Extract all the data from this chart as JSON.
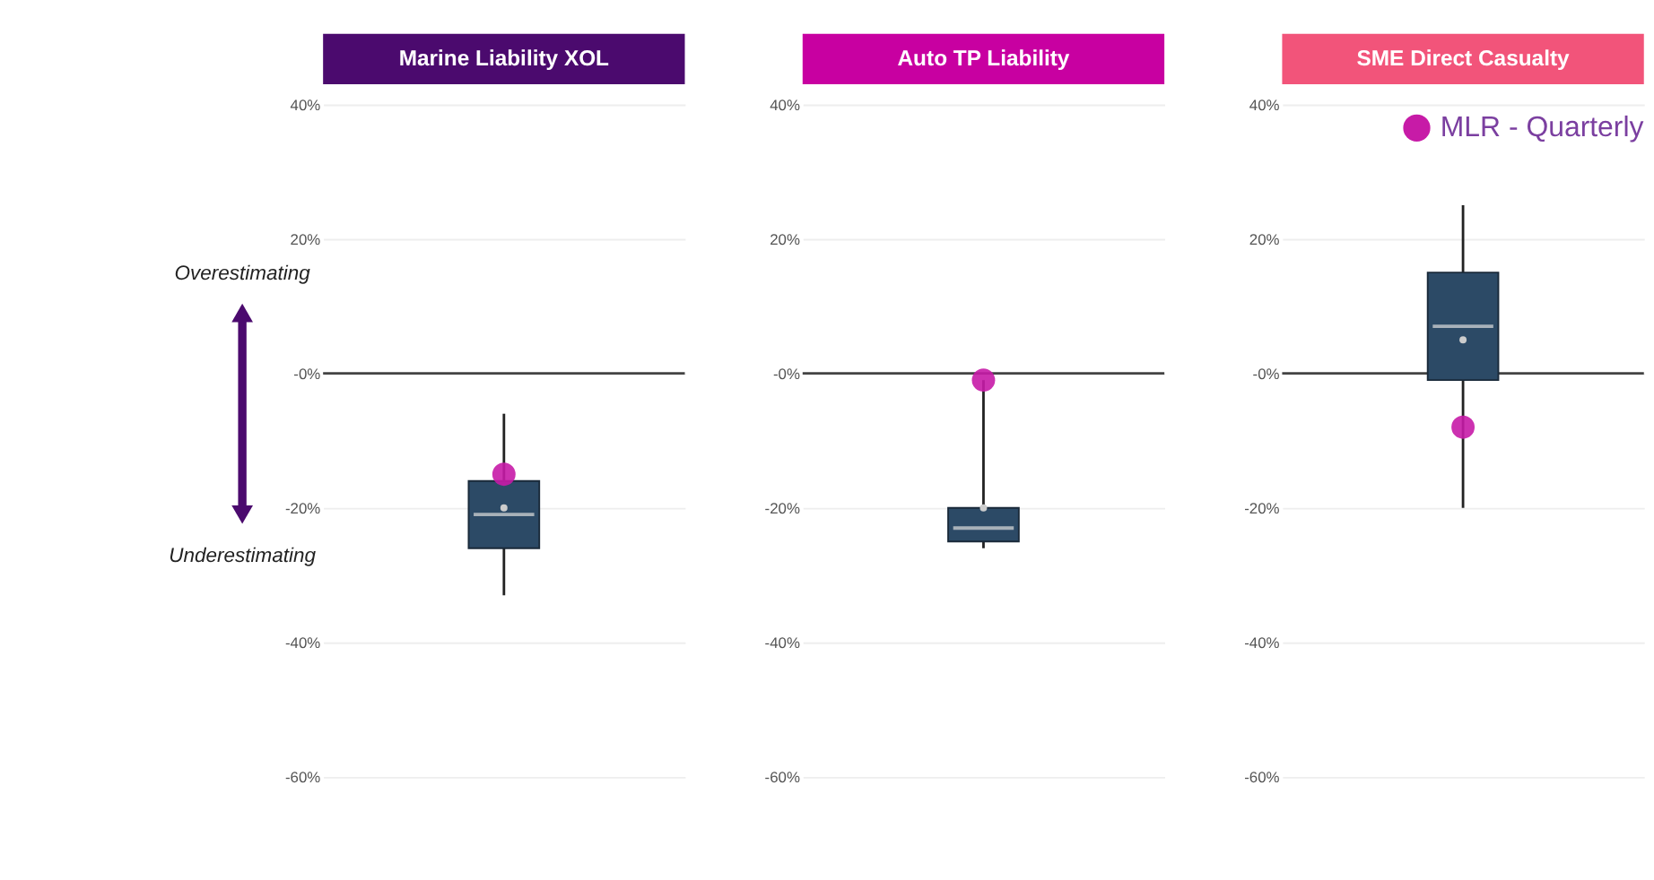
{
  "chart_data": [
    {
      "type": "box",
      "title": "Marine Liability XOL",
      "categories": [
        null
      ],
      "ylim": [
        -60,
        40
      ],
      "yticks": [
        {
          "value": -60,
          "label": "-60%"
        },
        {
          "value": -40,
          "label": "-40%"
        },
        {
          "value": -20,
          "label": "-20%"
        },
        {
          "value": 0,
          "label": "-0%"
        },
        {
          "value": 20,
          "label": "20%"
        },
        {
          "value": 40,
          "label": "40%"
        }
      ],
      "grid": "y",
      "tick_labels": "y",
      "legend": false,
      "series": [
        {
          "color": "#2c4a66",
          "boxes": [
            {
              "low": -33,
              "q1": -26,
              "median": -21,
              "q3": -16,
              "high": -6,
              "mean": -20
            }
          ]
        },
        {
          "type": "scatter",
          "color": "#c71ba7",
          "values": [
            -15
          ]
        }
      ],
      "ref_lines": [
        {
          "axis": "y",
          "value": 0,
          "color": "#444444"
        }
      ],
      "annotations": [
        "Overestimating",
        "Underestimating"
      ]
    },
    {
      "type": "box",
      "title": "Auto TP Liability",
      "categories": [
        null
      ],
      "ylim": [
        -60,
        40
      ],
      "yticks": [
        {
          "value": -60,
          "label": "-60%"
        },
        {
          "value": -40,
          "label": "-40%"
        },
        {
          "value": -20,
          "label": "-20%"
        },
        {
          "value": 0,
          "label": "-0%"
        },
        {
          "value": 20,
          "label": "20%"
        },
        {
          "value": 40,
          "label": "40%"
        }
      ],
      "grid": "y",
      "tick_labels": "y",
      "legend": false,
      "series": [
        {
          "color": "#2c4a66",
          "boxes": [
            {
              "low": -26,
              "q1": -25,
              "median": -23,
              "q3": -20,
              "high": -1,
              "mean": -20
            }
          ]
        },
        {
          "type": "scatter",
          "color": "#c71ba7",
          "values": [
            -1
          ]
        }
      ],
      "ref_lines": [
        {
          "axis": "y",
          "value": 0,
          "color": "#444444"
        }
      ]
    },
    {
      "type": "box",
      "title": "SME Direct Casualty",
      "categories": [
        null
      ],
      "ylim": [
        -60,
        40
      ],
      "yticks": [
        {
          "value": -60,
          "label": "-60%"
        },
        {
          "value": -40,
          "label": "-40%"
        },
        {
          "value": -20,
          "label": "-20%"
        },
        {
          "value": 0,
          "label": "-0%"
        },
        {
          "value": 20,
          "label": "20%"
        },
        {
          "value": 40,
          "label": "40%"
        }
      ],
      "grid": "y",
      "tick_labels": "y",
      "legend": "top right",
      "series": [
        {
          "color": "#2c4a66",
          "boxes": [
            {
              "low": -20,
              "q1": -1,
              "median": 7,
              "q3": 15,
              "high": 25,
              "mean": 5
            }
          ]
        },
        {
          "type": "scatter",
          "name": "MLR - Quarterly",
          "color": "#c71ba7",
          "values": [
            -8
          ]
        }
      ],
      "ref_lines": [
        {
          "axis": "y",
          "value": 0,
          "color": "#444444"
        }
      ]
    }
  ]
}
